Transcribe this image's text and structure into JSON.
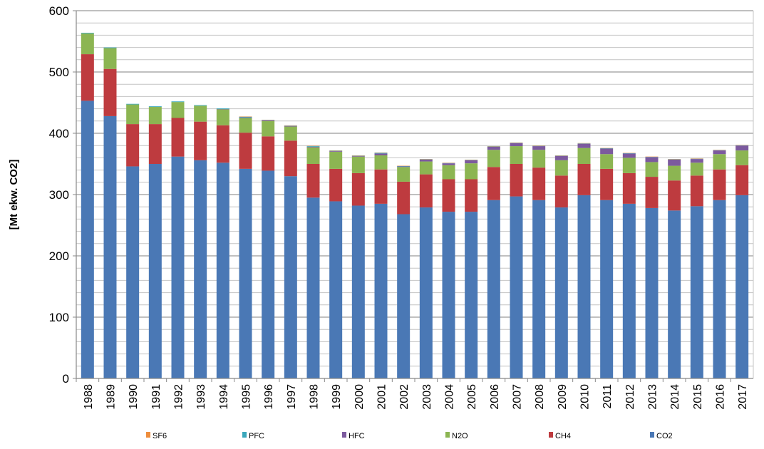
{
  "chart_data": {
    "type": "bar",
    "stacked": true,
    "title": "",
    "xlabel": "",
    "ylabel": "[Mt  ekw. CO2]",
    "ylim": [
      0,
      600
    ],
    "yticks": [
      0,
      100,
      200,
      300,
      400,
      500,
      600
    ],
    "grid": true,
    "legend_position": "bottom",
    "categories": [
      "1988",
      "1989",
      "1990",
      "1991",
      "1992",
      "1993",
      "1994",
      "1995",
      "1996",
      "1997",
      "1998",
      "1999",
      "2000",
      "2001",
      "2002",
      "2003",
      "2004",
      "2005",
      "2006",
      "2007",
      "2008",
      "2009",
      "2010",
      "2011",
      "2012",
      "2013",
      "2014",
      "2015",
      "2016",
      "2017"
    ],
    "series": [
      {
        "name": "CO2",
        "color": "#4a78b5",
        "values": [
          453,
          428,
          346,
          350,
          362,
          356,
          352,
          342,
          339,
          330,
          295,
          289,
          282,
          285,
          268,
          279,
          272,
          272,
          291,
          297,
          291,
          279,
          299,
          291,
          285,
          278,
          274,
          281,
          291,
          299
        ]
      },
      {
        "name": "CH4",
        "color": "#be3b3f",
        "values": [
          76,
          77,
          69,
          65,
          63,
          63,
          61,
          59,
          56,
          58,
          55,
          53,
          53,
          56,
          53,
          54,
          53,
          53,
          54,
          53,
          53,
          52,
          51,
          51,
          50,
          51,
          49,
          50,
          50,
          49
        ]
      },
      {
        "name": "N2O",
        "color": "#8cb552",
        "values": [
          34,
          34,
          32,
          28,
          26,
          26,
          26,
          24,
          25,
          23,
          27,
          28,
          27,
          23,
          24,
          21,
          23,
          26,
          28,
          29,
          29,
          25,
          26,
          24,
          25,
          24,
          24,
          21,
          25,
          24
        ]
      },
      {
        "name": "HFC",
        "color": "#7c5a9e",
        "values": [
          0,
          0,
          0,
          0,
          0,
          0,
          0.5,
          1,
          1,
          1,
          1,
          1,
          1,
          3,
          1,
          3,
          3,
          5,
          5,
          5,
          6,
          7,
          7,
          9,
          7,
          8,
          10,
          6,
          6,
          8
        ]
      },
      {
        "name": "PFC",
        "color": "#3aa7bb",
        "values": [
          1,
          1,
          1,
          1,
          1,
          1,
          1,
          1,
          0.5,
          0.5,
          1,
          0.5,
          0.5,
          1,
          0.5,
          0.5,
          0.5,
          0.5,
          0.5,
          0.5,
          0.5,
          0.5,
          0.5,
          0.5,
          0.5,
          0.5,
          0.5,
          0.5,
          0.5,
          0.5
        ]
      },
      {
        "name": "SF6",
        "color": "#ee8d3c",
        "values": [
          0,
          0,
          0,
          0,
          0,
          0,
          0,
          0.5,
          0.5,
          0.5,
          0.5,
          0.5,
          0.5,
          0.5,
          0.5,
          0.5,
          0.5,
          0.5,
          0.5,
          0.5,
          0.5,
          0.5,
          0.5,
          0.5,
          0.5,
          0.5,
          0.5,
          0.5,
          0.5,
          0.5
        ]
      }
    ],
    "legend_order": [
      "SF6",
      "PFC",
      "HFC",
      "N2O",
      "CH4",
      "CO2"
    ]
  }
}
